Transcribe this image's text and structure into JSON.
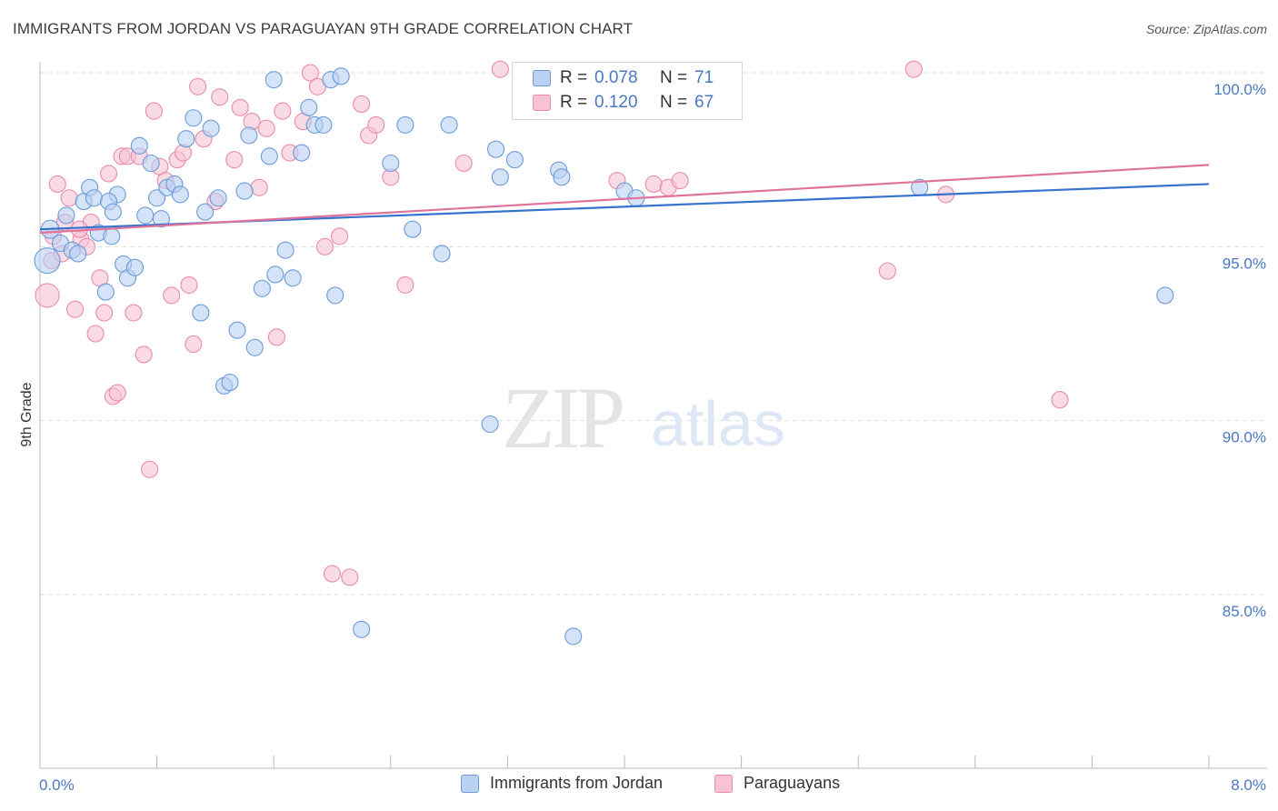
{
  "title": "IMMIGRANTS FROM JORDAN VS PARAGUAYAN 9TH GRADE CORRELATION CHART",
  "source": "Source: ZipAtlas.com",
  "watermark": {
    "zip": "ZIP",
    "atlas": "atlas"
  },
  "colors": {
    "blue_fill": "#b9d1f3",
    "blue_stroke": "#6a9bd8",
    "blue_line": "#3673cc",
    "pink_fill": "#f7c3d3",
    "pink_stroke": "#e98aa9",
    "pink_line": "#e0739a",
    "grid": "#dedede",
    "axis_text": "#4a78c2"
  },
  "legend": {
    "rows": [
      {
        "r_label": "R =",
        "r_value": "0.078",
        "n_label": "N =",
        "n_value": "71"
      },
      {
        "r_label": "R =",
        "r_value": "0.120",
        "n_label": "N =",
        "n_value": "67"
      }
    ]
  },
  "bottom_legend": {
    "series1": "Immigrants from Jordan",
    "series2": "Paraguayans"
  },
  "chart_data": {
    "type": "scatter",
    "title": "IMMIGRANTS FROM JORDAN VS PARAGUAYAN 9TH GRADE CORRELATION CHART",
    "xlabel": "",
    "ylabel": "9th Grade",
    "xlim": [
      0,
      8
    ],
    "ylim": [
      80.5,
      100.5
    ],
    "x_tick_labels": [
      "0.0%",
      "8.0%"
    ],
    "y_ticks": [
      85,
      90,
      95,
      100
    ],
    "y_tick_labels": [
      "85.0%",
      "90.0%",
      "95.0%",
      "100.0%"
    ],
    "grid": true,
    "series": [
      {
        "name": "Immigrants from Jordan",
        "trend": {
          "x": [
            0.0,
            8.0
          ],
          "y": [
            95.5,
            96.8
          ]
        },
        "points": [
          [
            0.05,
            94.6,
            14
          ],
          [
            0.07,
            95.5,
            10
          ],
          [
            0.14,
            95.1,
            9
          ],
          [
            0.18,
            95.9,
            9
          ],
          [
            0.22,
            94.9,
            9
          ],
          [
            0.26,
            94.8,
            9
          ],
          [
            0.3,
            96.3,
            9
          ],
          [
            0.34,
            96.7,
            9
          ],
          [
            0.37,
            96.4,
            9
          ],
          [
            0.4,
            95.4,
            9
          ],
          [
            0.45,
            93.7,
            9
          ],
          [
            0.49,
            95.3,
            9
          ],
          [
            0.53,
            96.5,
            9
          ],
          [
            0.57,
            94.5,
            9
          ],
          [
            0.6,
            94.1,
            9
          ],
          [
            0.65,
            94.4,
            9
          ],
          [
            0.68,
            97.9,
            9
          ],
          [
            0.72,
            95.9,
            9
          ],
          [
            0.76,
            97.4,
            9
          ],
          [
            0.8,
            96.4,
            9
          ],
          [
            0.83,
            95.8,
            9
          ],
          [
            0.87,
            96.7,
            9
          ],
          [
            0.92,
            96.8,
            9
          ],
          [
            0.96,
            96.5,
            9
          ],
          [
            1.0,
            98.1,
            9
          ],
          [
            1.05,
            98.7,
            9
          ],
          [
            1.1,
            93.1,
            9
          ],
          [
            1.13,
            96.0,
            9
          ],
          [
            1.17,
            98.4,
            9
          ],
          [
            1.22,
            96.4,
            9
          ],
          [
            1.26,
            91.0,
            9
          ],
          [
            1.3,
            91.1,
            9
          ],
          [
            1.35,
            92.6,
            9
          ],
          [
            1.4,
            96.6,
            9
          ],
          [
            1.43,
            98.2,
            9
          ],
          [
            1.47,
            92.1,
            9
          ],
          [
            1.52,
            93.8,
            9
          ],
          [
            1.57,
            97.6,
            9
          ],
          [
            1.61,
            94.2,
            9
          ],
          [
            1.68,
            94.9,
            9
          ],
          [
            1.73,
            94.1,
            9
          ],
          [
            1.79,
            97.7,
            9
          ],
          [
            1.84,
            99.0,
            9
          ],
          [
            1.88,
            98.5,
            9
          ],
          [
            1.94,
            98.5,
            9
          ],
          [
            1.99,
            99.8,
            9
          ],
          [
            2.02,
            93.6,
            9
          ],
          [
            2.06,
            99.9,
            9
          ],
          [
            2.2,
            84.0,
            9
          ],
          [
            2.4,
            97.4,
            9
          ],
          [
            2.5,
            98.5,
            9
          ],
          [
            2.55,
            95.5,
            9
          ],
          [
            2.75,
            94.8,
            9
          ],
          [
            2.8,
            98.5,
            9
          ],
          [
            3.08,
            89.9,
            9
          ],
          [
            3.12,
            97.8,
            9
          ],
          [
            3.15,
            97.0,
            9
          ],
          [
            3.25,
            97.5,
            9
          ],
          [
            3.4,
            100.0,
            9
          ],
          [
            3.55,
            97.2,
            9
          ],
          [
            3.57,
            97.0,
            9
          ],
          [
            3.65,
            83.8,
            9
          ],
          [
            3.7,
            99.4,
            9
          ],
          [
            4.0,
            96.6,
            9
          ],
          [
            4.08,
            96.4,
            9
          ],
          [
            4.3,
            100.0,
            9
          ],
          [
            6.02,
            96.7,
            9
          ],
          [
            7.7,
            93.6,
            9
          ],
          [
            0.47,
            96.3,
            9
          ],
          [
            0.5,
            96.0,
            9
          ],
          [
            1.6,
            99.8,
            9
          ]
        ]
      },
      {
        "name": "Paraguayans",
        "trend": {
          "x": [
            0.0,
            8.0
          ],
          "y": [
            95.4,
            97.35
          ]
        },
        "points": [
          [
            0.05,
            93.6,
            13
          ],
          [
            0.08,
            94.6,
            9
          ],
          [
            0.12,
            96.8,
            9
          ],
          [
            0.17,
            95.7,
            9
          ],
          [
            0.2,
            96.4,
            9
          ],
          [
            0.24,
            93.2,
            9
          ],
          [
            0.28,
            95.2,
            9
          ],
          [
            0.32,
            95.0,
            9
          ],
          [
            0.35,
            95.7,
            9
          ],
          [
            0.38,
            92.5,
            9
          ],
          [
            0.41,
            94.1,
            9
          ],
          [
            0.44,
            93.1,
            9
          ],
          [
            0.47,
            97.1,
            9
          ],
          [
            0.5,
            90.7,
            9
          ],
          [
            0.53,
            90.8,
            9
          ],
          [
            0.56,
            97.6,
            9
          ],
          [
            0.6,
            97.6,
            9
          ],
          [
            0.64,
            93.1,
            9
          ],
          [
            0.68,
            97.6,
            9
          ],
          [
            0.71,
            91.9,
            9
          ],
          [
            0.75,
            88.6,
            9
          ],
          [
            0.78,
            98.9,
            9
          ],
          [
            0.82,
            97.3,
            9
          ],
          [
            0.86,
            96.9,
            9
          ],
          [
            0.9,
            93.6,
            9
          ],
          [
            0.94,
            97.5,
            9
          ],
          [
            0.98,
            97.7,
            9
          ],
          [
            1.02,
            93.9,
            9
          ],
          [
            1.05,
            92.2,
            9
          ],
          [
            1.08,
            99.6,
            9
          ],
          [
            1.12,
            98.1,
            9
          ],
          [
            1.2,
            96.3,
            9
          ],
          [
            1.23,
            99.3,
            9
          ],
          [
            1.33,
            97.5,
            9
          ],
          [
            1.45,
            98.6,
            9
          ],
          [
            1.5,
            96.7,
            9
          ],
          [
            1.55,
            98.4,
            9
          ],
          [
            1.62,
            92.4,
            9
          ],
          [
            1.66,
            98.9,
            9
          ],
          [
            1.71,
            97.7,
            9
          ],
          [
            1.8,
            98.6,
            9
          ],
          [
            1.85,
            100.0,
            9
          ],
          [
            1.9,
            99.6,
            9
          ],
          [
            1.95,
            95.0,
            9
          ],
          [
            2.0,
            85.6,
            9
          ],
          [
            2.05,
            95.3,
            9
          ],
          [
            2.12,
            85.5,
            9
          ],
          [
            2.2,
            99.1,
            9
          ],
          [
            2.25,
            98.2,
            9
          ],
          [
            2.3,
            98.5,
            9
          ],
          [
            2.4,
            97.0,
            9
          ],
          [
            2.5,
            93.9,
            9
          ],
          [
            2.9,
            97.4,
            9
          ],
          [
            3.15,
            100.1,
            9
          ],
          [
            3.4,
            98.9,
            9
          ],
          [
            3.95,
            96.9,
            9
          ],
          [
            4.2,
            96.8,
            9
          ],
          [
            4.3,
            96.7,
            9
          ],
          [
            4.38,
            96.9,
            9
          ],
          [
            5.8,
            94.3,
            9
          ],
          [
            5.98,
            100.1,
            9
          ],
          [
            6.2,
            96.5,
            9
          ],
          [
            6.98,
            90.6,
            9
          ],
          [
            0.09,
            95.3,
            9
          ],
          [
            0.15,
            94.8,
            9
          ],
          [
            1.37,
            99.0,
            9
          ],
          [
            0.27,
            95.5,
            9
          ]
        ]
      }
    ]
  }
}
